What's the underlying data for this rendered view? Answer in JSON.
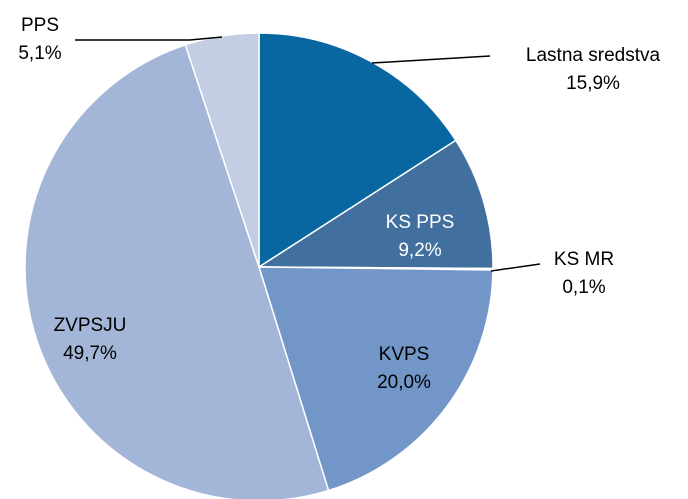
{
  "chart_data": {
    "type": "pie",
    "categories": [
      "Lastna sredstva",
      "KS PPS",
      "KS MR",
      "KVPS",
      "ZVPSJU",
      "PPS"
    ],
    "values": [
      15.9,
      9.2,
      0.1,
      20.0,
      49.7,
      5.1
    ],
    "value_labels": [
      "15,9%",
      "9,2%",
      "0,1%",
      "20,0%",
      "49,7%",
      "5,1%"
    ],
    "colors": [
      "#0867a1",
      "#41709f",
      "#5a82b4",
      "#7396c8",
      "#a3b6d7",
      "#c3cee4"
    ]
  }
}
